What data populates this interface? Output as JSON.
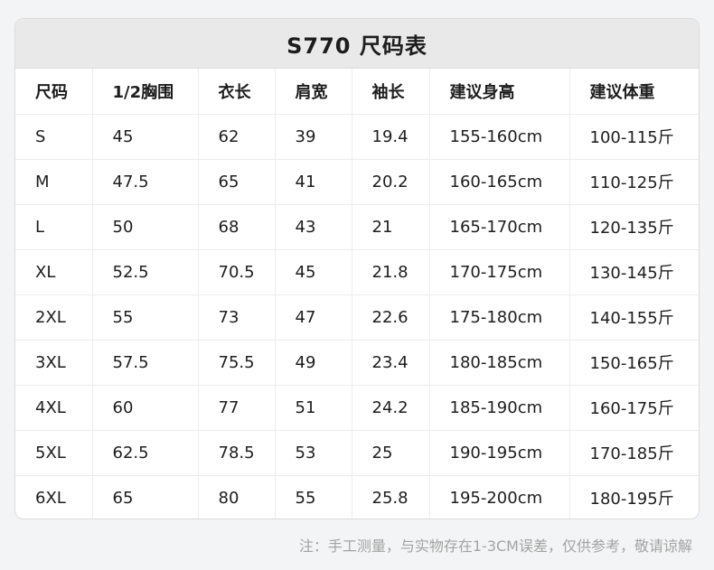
{
  "title": "S770 尺码表",
  "headers": [
    "尺码",
    "1/2胸围",
    "衣长",
    "肩宽",
    "袖长",
    "建议身高",
    "建议体重"
  ],
  "rows": [
    [
      "S",
      "45",
      "62",
      "39",
      "19.4",
      "155-160cm",
      "100-115斤"
    ],
    [
      "M",
      "47.5",
      "65",
      "41",
      "20.2",
      "160-165cm",
      "110-125斤"
    ],
    [
      "L",
      "50",
      "68",
      "43",
      "21",
      "165-170cm",
      "120-135斤"
    ],
    [
      "XL",
      "52.5",
      "70.5",
      "45",
      "21.8",
      "170-175cm",
      "130-145斤"
    ],
    [
      "2XL",
      "55",
      "73",
      "47",
      "22.6",
      "175-180cm",
      "140-155斤"
    ],
    [
      "3XL",
      "57.5",
      "75.5",
      "49",
      "23.4",
      "180-185cm",
      "150-165斤"
    ],
    [
      "4XL",
      "60",
      "77",
      "51",
      "24.2",
      "185-190cm",
      "160-175斤"
    ],
    [
      "5XL",
      "62.5",
      "78.5",
      "53",
      "25",
      "190-195cm",
      "170-185斤"
    ],
    [
      "6XL",
      "65",
      "80",
      "55",
      "25.8",
      "195-200cm",
      "180-195斤"
    ]
  ],
  "note": "注：手工测量，与实物存在1-3CM误差，仅供参考，敬请谅解"
}
